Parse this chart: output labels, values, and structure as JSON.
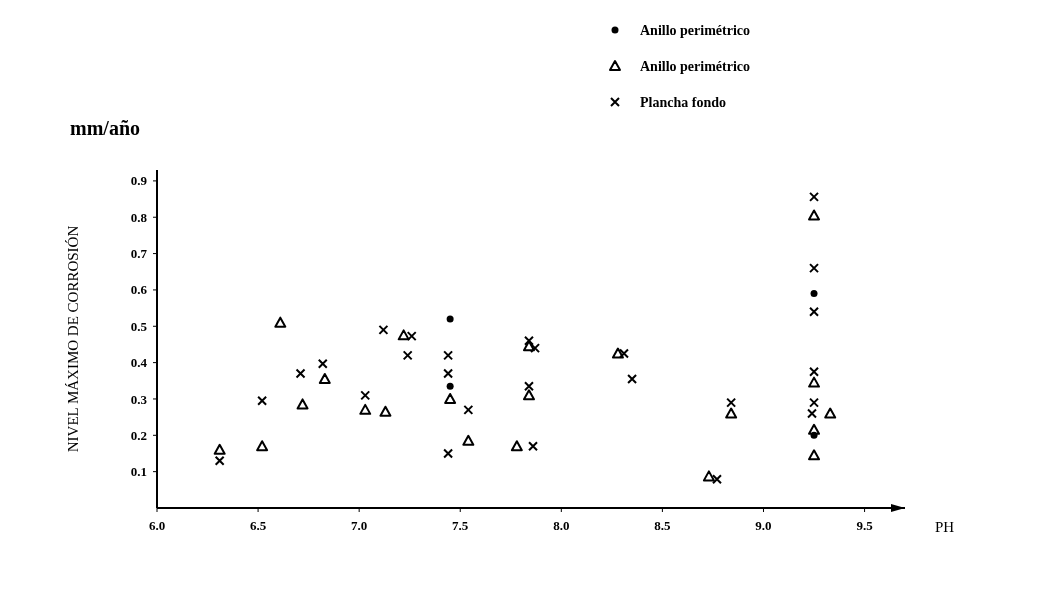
{
  "chart_data": {
    "type": "scatter",
    "xlabel": "PH",
    "ylabel": "NIVEL MÁXIMO DE CORROSIÓN",
    "annotations": [
      "mm/año"
    ],
    "xlim": [
      6.0,
      9.7
    ],
    "ylim": [
      0,
      0.93
    ],
    "xticks": [
      {
        "value": 6.0,
        "label": "6.0"
      },
      {
        "value": 6.5,
        "label": "6.5"
      },
      {
        "value": 7.0,
        "label": "7.0"
      },
      {
        "value": 7.5,
        "label": "7.5"
      },
      {
        "value": 8.0,
        "label": "8.0"
      },
      {
        "value": 8.5,
        "label": "8.5"
      },
      {
        "value": 9.0,
        "label": "9.0"
      },
      {
        "value": 9.5,
        "label": "9.5"
      }
    ],
    "yticks": [
      0.1,
      0.2,
      0.3,
      0.4,
      0.5,
      0.6,
      0.7,
      0.8,
      0.9
    ],
    "legend": "top right",
    "grid": false,
    "series": [
      {
        "name": "Anillo perimétrico",
        "color": "#000000",
        "marker": "circle",
        "x": [
          7.45,
          7.45,
          9.25,
          9.25
        ],
        "values": [
          0.52,
          0.335,
          0.59,
          0.2
        ]
      },
      {
        "name": "Anillo perimétrico",
        "color": "#000000",
        "marker": "triangle",
        "x": [
          6.31,
          6.52,
          6.61,
          6.72,
          6.83,
          7.03,
          7.13,
          7.22,
          7.45,
          7.54,
          7.84,
          7.84,
          7.78,
          8.28,
          8.73,
          8.84,
          9.25,
          9.25,
          9.33,
          9.25,
          9.25
        ],
        "values": [
          0.16,
          0.17,
          0.51,
          0.285,
          0.355,
          0.27,
          0.265,
          0.475,
          0.3,
          0.185,
          0.445,
          0.31,
          0.17,
          0.425,
          0.087,
          0.26,
          0.805,
          0.345,
          0.26,
          0.215,
          0.145
        ]
      },
      {
        "name": "Plancha fondo",
        "color": "#000000",
        "marker": "cross",
        "x": [
          6.31,
          6.52,
          6.71,
          6.82,
          7.03,
          7.12,
          7.26,
          7.24,
          7.44,
          7.44,
          7.54,
          7.44,
          7.84,
          7.87,
          7.84,
          7.86,
          8.31,
          8.35,
          8.77,
          8.84,
          9.25,
          9.25,
          9.25,
          9.25,
          9.25,
          9.24
        ],
        "values": [
          0.13,
          0.295,
          0.37,
          0.397,
          0.31,
          0.49,
          0.473,
          0.42,
          0.42,
          0.37,
          0.27,
          0.15,
          0.46,
          0.44,
          0.335,
          0.17,
          0.425,
          0.355,
          0.079,
          0.29,
          0.856,
          0.66,
          0.54,
          0.375,
          0.29,
          0.26
        ]
      }
    ]
  }
}
